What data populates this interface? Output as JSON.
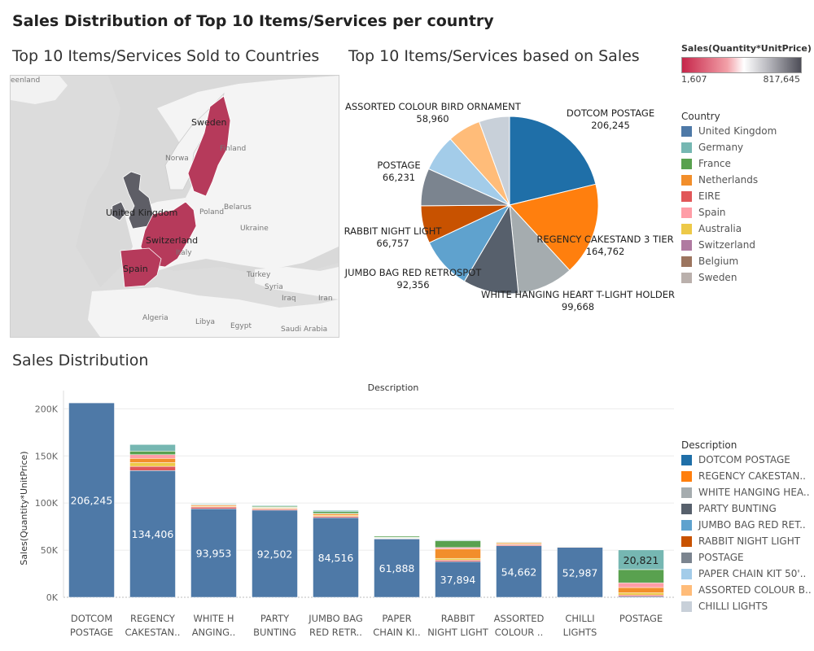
{
  "dashboard_title": "Sales Distribution of Top 10 Items/Services per country",
  "map": {
    "title": "Top 10 Items/Services Sold to Countries",
    "highlighted_countries": [
      "Sweden",
      "United Kingdom",
      "Switzerland",
      "Spain"
    ],
    "place_labels": [
      "eenland",
      "Norwa",
      "Finland",
      "Poland",
      "Belarus",
      "Ukraine",
      "Italy",
      "Turkey",
      "Syria",
      "Iraq",
      "Iran",
      "Algeria",
      "Libya",
      "Egypt",
      "Saudi Arabia"
    ]
  },
  "sales_legend": {
    "title": "Sales(Quantity*UnitPrice)",
    "min_label": "1,607",
    "max_label": "817,645",
    "colors": [
      "#c6264a",
      "#ffffff",
      "#4d4d57"
    ]
  },
  "country_legend": {
    "title": "Country",
    "items": [
      {
        "label": "United Kingdom",
        "color": "#4e79a7"
      },
      {
        "label": "Germany",
        "color": "#76b7b2"
      },
      {
        "label": "France",
        "color": "#59a14f"
      },
      {
        "label": "Netherlands",
        "color": "#f28e2b"
      },
      {
        "label": "EIRE",
        "color": "#e15759"
      },
      {
        "label": "Spain",
        "color": "#ff9da7"
      },
      {
        "label": "Australia",
        "color": "#edc948"
      },
      {
        "label": "Switzerland",
        "color": "#b07aa1"
      },
      {
        "label": "Belgium",
        "color": "#9c755f"
      },
      {
        "label": "Sweden",
        "color": "#bab0ac"
      }
    ]
  },
  "description_legend": {
    "title": "Description",
    "items": [
      {
        "label": "DOTCOM POSTAGE",
        "color": "#1f6fa8"
      },
      {
        "label": "REGENCY CAKESTAN..",
        "color": "#ff7f0e"
      },
      {
        "label": "WHITE HANGING HEA..",
        "color": "#a5acaf"
      },
      {
        "label": "PARTY BUNTING",
        "color": "#57606c"
      },
      {
        "label": "JUMBO BAG RED RET..",
        "color": "#5fa2ce"
      },
      {
        "label": "RABBIT NIGHT LIGHT",
        "color": "#c85200"
      },
      {
        "label": "POSTAGE",
        "color": "#7b848f"
      },
      {
        "label": "PAPER CHAIN KIT 50'..",
        "color": "#a3cce9"
      },
      {
        "label": "ASSORTED COLOUR B..",
        "color": "#ffbc79"
      },
      {
        "label": "CHILLI LIGHTS",
        "color": "#c8d0d9"
      }
    ]
  },
  "chart_data": [
    {
      "type": "pie",
      "title": "Top 10 Items/Services based on Sales",
      "slices": [
        {
          "label": "DOTCOM POSTAGE",
          "value": 206245,
          "value_label": "206,245",
          "color": "#1f6fa8"
        },
        {
          "label": "REGENCY CAKESTAND 3 TIER",
          "value": 164762,
          "value_label": "164,762",
          "color": "#ff7f0e"
        },
        {
          "label": "WHITE HANGING HEART T-LIGHT HOLDER",
          "value": 99668,
          "value_label": "99,668",
          "color": "#a5acaf"
        },
        {
          "label": "PARTY BUNTING",
          "value": 98243,
          "value_label": "",
          "color": "#57606c"
        },
        {
          "label": "JUMBO BAG RED RETROSPOT",
          "value": 92356,
          "value_label": "92,356",
          "color": "#5fa2ce"
        },
        {
          "label": "RABBIT NIGHT LIGHT",
          "value": 66757,
          "value_label": "66,757",
          "color": "#c85200"
        },
        {
          "label": "POSTAGE",
          "value": 66231,
          "value_label": "66,231",
          "color": "#7b848f"
        },
        {
          "label": "PAPER CHAIN KIT 50'S CHRISTMAS",
          "value": 64952,
          "value_label": "",
          "color": "#a3cce9"
        },
        {
          "label": "ASSORTED COLOUR BIRD ORNAMENT",
          "value": 58960,
          "value_label": "58,960",
          "color": "#ffbc79"
        },
        {
          "label": "CHILLI LIGHTS",
          "value": 54097,
          "value_label": "",
          "color": "#c8d0d9"
        }
      ]
    },
    {
      "type": "bar",
      "stacked": true,
      "title": "Sales Distribution",
      "header": "Description",
      "ylabel": "Sales(Quantity*UnitPrice)",
      "ylim": [
        0,
        215000
      ],
      "yticks": [
        0,
        50000,
        100000,
        150000,
        200000
      ],
      "ytick_labels": [
        "0K",
        "50K",
        "100K",
        "150K",
        "200K"
      ],
      "categories": [
        [
          "DOTCOM",
          "POSTAGE"
        ],
        [
          "REGENCY",
          "CAKESTAN.."
        ],
        [
          "WHITE H",
          "ANGING.."
        ],
        [
          "PARTY",
          "BUNTING"
        ],
        [
          "JUMBO BAG",
          "RED RETR.."
        ],
        [
          "PAPER",
          "CHAIN KI.."
        ],
        [
          "RABBIT",
          "NIGHT LIGHT"
        ],
        [
          "ASSORTED",
          "COLOUR .."
        ],
        [
          "CHILLI",
          "LIGHTS"
        ],
        [
          "POSTAGE"
        ]
      ],
      "series": [
        {
          "name": "United Kingdom",
          "color": "#4e79a7",
          "values": [
            206245,
            134406,
            93953,
            92502,
            84516,
            61888,
            37894,
            54662,
            52987,
            1000
          ]
        },
        {
          "name": "EIRE",
          "color": "#e15759",
          "values": [
            0,
            4500,
            1800,
            1200,
            1400,
            500,
            1500,
            1200,
            600,
            1400
          ]
        },
        {
          "name": "Australia",
          "color": "#edc948",
          "values": [
            0,
            4000,
            700,
            600,
            1100,
            600,
            1900,
            800,
            300,
            2500
          ]
        },
        {
          "name": "Netherlands",
          "color": "#f28e2b",
          "values": [
            0,
            4500,
            1200,
            900,
            1600,
            300,
            10000,
            1200,
            600,
            5500
          ]
        },
        {
          "name": "Spain",
          "color": "#ff9da7",
          "values": [
            0,
            4000,
            500,
            300,
            300,
            200,
            1500,
            400,
            100,
            5000
          ]
        },
        {
          "name": "France",
          "color": "#59a14f",
          "values": [
            0,
            3700,
            700,
            1000,
            1900,
            1500,
            7200,
            600,
            300,
            14000
          ]
        },
        {
          "name": "Germany",
          "color": "#76b7b2",
          "values": [
            0,
            7000,
            700,
            800,
            1400,
            200,
            800,
            400,
            300,
            20821
          ]
        }
      ],
      "bar_value_labels": [
        "206,245",
        "134,406",
        "93,953",
        "92,502",
        "84,516",
        "61,888",
        "37,894",
        "54,662",
        "52,987",
        "20,821"
      ],
      "labeled_series": [
        "United Kingdom",
        "United Kingdom",
        "United Kingdom",
        "United Kingdom",
        "United Kingdom",
        "United Kingdom",
        "United Kingdom",
        "United Kingdom",
        "United Kingdom",
        "Germany"
      ]
    }
  ]
}
